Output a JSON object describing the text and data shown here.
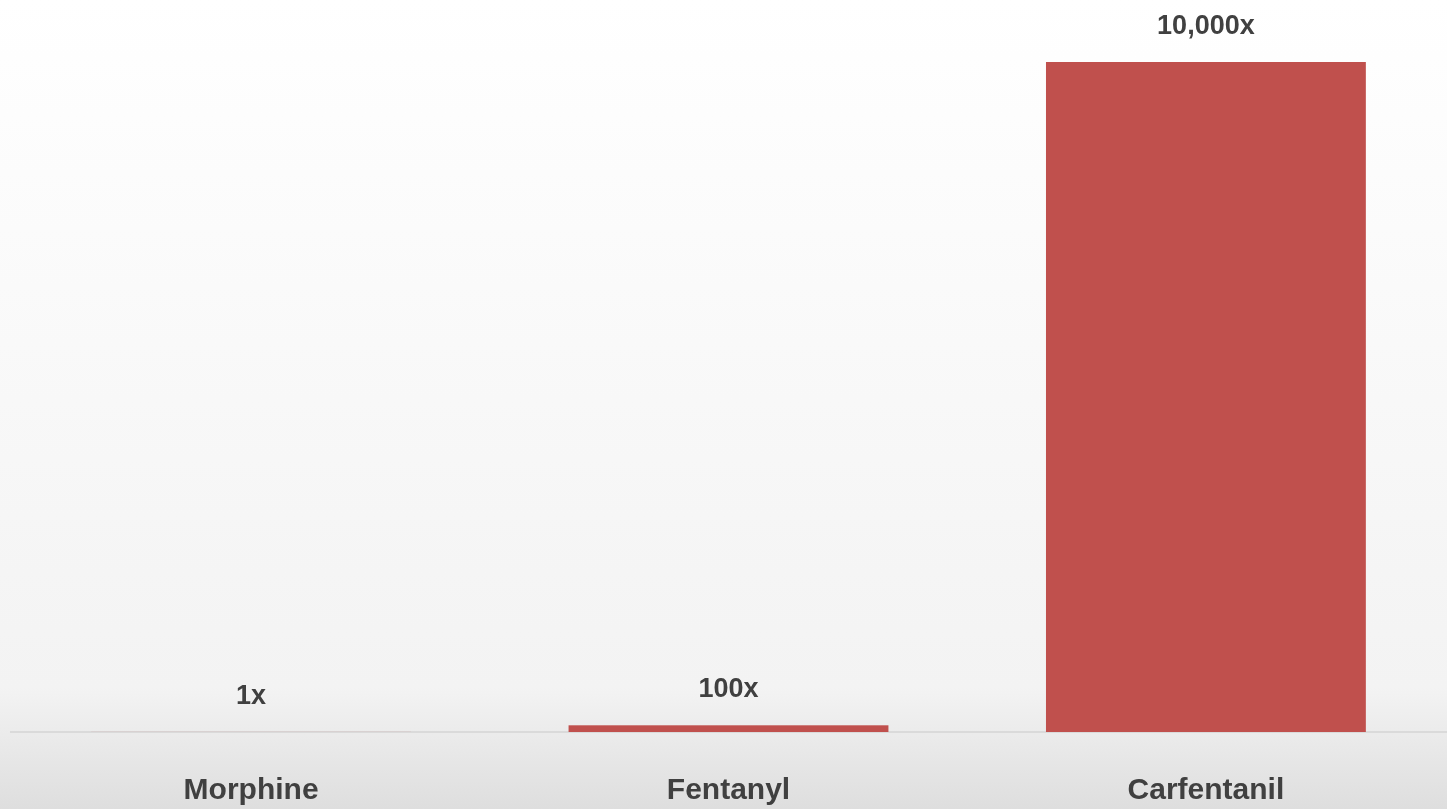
{
  "chart_data": {
    "type": "bar",
    "categories": [
      "Morphine",
      "Fentanyl",
      "Carfentanil"
    ],
    "values": [
      1,
      100,
      10000
    ],
    "value_labels": [
      "1x",
      "100x",
      "10,000x"
    ],
    "color": "#c0504d"
  }
}
